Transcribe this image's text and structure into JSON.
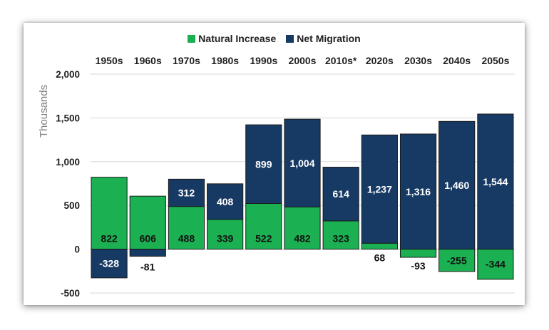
{
  "chart_data": {
    "type": "bar",
    "stacked": true,
    "ylabel": "Thousands",
    "ylim": [
      -500,
      2000
    ],
    "yticks": [
      -500,
      0,
      500,
      1000,
      1500,
      2000
    ],
    "ytick_labels": [
      "-500",
      "0",
      "500",
      "1,000",
      "1,500",
      "2,000"
    ],
    "categories": [
      "1950s",
      "1960s",
      "1970s",
      "1980s",
      "1990s",
      "2000s",
      "2010s*",
      "2020s",
      "2030s",
      "2040s",
      "2050s"
    ],
    "grid": true,
    "legend_position": "top",
    "series": [
      {
        "name": "Natural Increase",
        "color": "#1bb152",
        "values": [
          822,
          606,
          488,
          339,
          522,
          482,
          323,
          68,
          -93,
          -255,
          -344
        ],
        "labels": [
          "822",
          "606",
          "488",
          "339",
          "522",
          "482",
          "323",
          "68",
          "-93",
          "-255",
          "-344"
        ]
      },
      {
        "name": "Net Migration",
        "color": "#173a64",
        "values": [
          -328,
          -81,
          312,
          408,
          899,
          1004,
          614,
          1237,
          1316,
          1460,
          1544
        ],
        "labels": [
          "-328",
          "-81",
          "312",
          "408",
          "899",
          "1,004",
          "614",
          "1,237",
          "1,316",
          "1,460",
          "1,544"
        ]
      }
    ]
  }
}
